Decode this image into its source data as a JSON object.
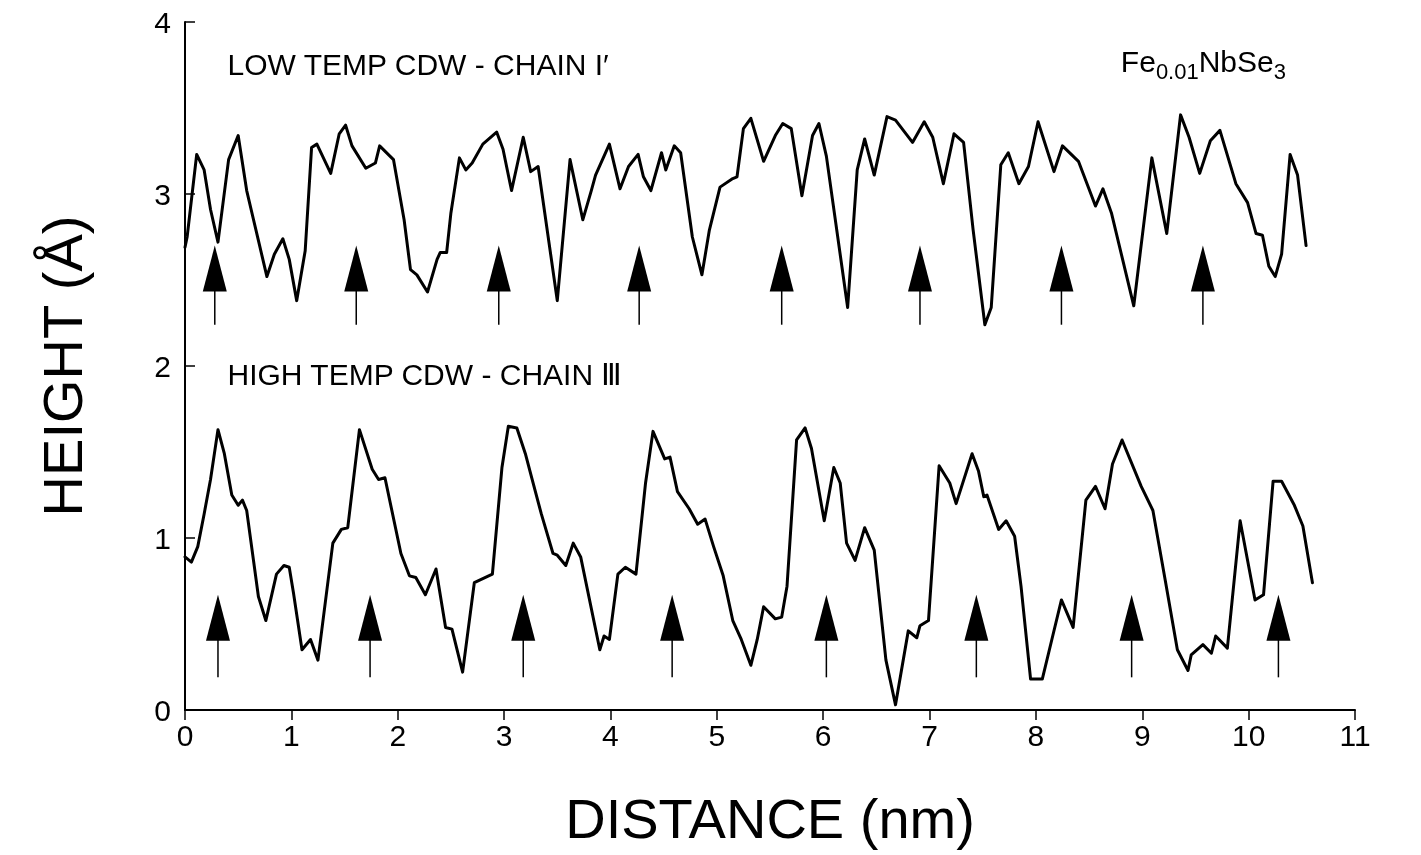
{
  "chart_data": {
    "type": "line",
    "xlabel": "DISTANCE (nm)",
    "ylabel": "HEIGHT (Å)",
    "annotations": [
      "LOW TEMP CDW - CHAIN I′",
      "HIGH TEMP CDW - CHAIN Ⅲ",
      "Fe$_{0.01}$NbSe$_{3}$"
    ],
    "xlim": [
      0,
      11
    ],
    "xticks": [
      0,
      1,
      2,
      3,
      4,
      5,
      6,
      7,
      8,
      9,
      10,
      11
    ],
    "ylim": [
      0,
      4
    ],
    "yticks": [
      0,
      1,
      2,
      3,
      4
    ],
    "grid": false,
    "marker": "none",
    "line_style": "solid",
    "series": [
      {
        "color": "#000000",
        "x": [
          0,
          0.02,
          0.11,
          0.18,
          0.24,
          0.31,
          0.41,
          0.5,
          0.58,
          0.69,
          0.77,
          0.84,
          0.92,
          0.98,
          1.05,
          1.13,
          1.19,
          1.24,
          1.37,
          1.45,
          1.51,
          1.57,
          1.7,
          1.79,
          1.83,
          1.96,
          2.06,
          2.12,
          2.18,
          2.28,
          2.37,
          2.4,
          2.46,
          2.5,
          2.58,
          2.64,
          2.7,
          2.8,
          2.93,
          2.99,
          3.07,
          3.18,
          3.25,
          3.32,
          3.5,
          3.62,
          3.74,
          3.82,
          3.86,
          3.99,
          4.09,
          4.17,
          4.26,
          4.31,
          4.38,
          4.48,
          4.52,
          4.6,
          4.66,
          4.77,
          4.86,
          4.93,
          5.03,
          5.15,
          5.19,
          5.25,
          5.32,
          5.44,
          5.55,
          5.62,
          5.7,
          5.8,
          5.9,
          5.96,
          6.03,
          6.23,
          6.32,
          6.39,
          6.48,
          6.6,
          6.68,
          6.84,
          6.95,
          7.03,
          7.13,
          7.23,
          7.32,
          7.41,
          7.52,
          7.58,
          7.67,
          7.74,
          7.84,
          7.93,
          8.02,
          8.17,
          8.25,
          8.4,
          8.56,
          8.63,
          8.71,
          8.92,
          9.09,
          9.23,
          9.36,
          9.44,
          9.54,
          9.64,
          9.73,
          9.88,
          9.99,
          10.07,
          10.13,
          10.19,
          10.25,
          10.31,
          10.39,
          10.46,
          10.54
        ],
        "values": [
          2.69,
          2.75,
          3.23,
          3.14,
          2.91,
          2.72,
          3.2,
          3.34,
          3.02,
          2.73,
          2.52,
          2.65,
          2.74,
          2.62,
          2.38,
          2.67,
          3.27,
          3.29,
          3.12,
          3.35,
          3.4,
          3.28,
          3.15,
          3.18,
          3.28,
          3.2,
          2.85,
          2.56,
          2.53,
          2.43,
          2.62,
          2.66,
          2.66,
          2.89,
          3.21,
          3.14,
          3.18,
          3.29,
          3.36,
          3.26,
          3.02,
          3.33,
          3.13,
          3.16,
          2.38,
          3.2,
          2.85,
          3.02,
          3.11,
          3.29,
          3.03,
          3.16,
          3.23,
          3.1,
          3.02,
          3.24,
          3.14,
          3.28,
          3.24,
          2.75,
          2.53,
          2.79,
          3.04,
          3.09,
          3.1,
          3.38,
          3.44,
          3.19,
          3.34,
          3.41,
          3.38,
          2.99,
          3.34,
          3.41,
          3.22,
          2.34,
          3.14,
          3.32,
          3.11,
          3.45,
          3.43,
          3.3,
          3.42,
          3.33,
          3.06,
          3.35,
          3.3,
          2.79,
          2.24,
          2.34,
          3.17,
          3.24,
          3.06,
          3.16,
          3.42,
          3.13,
          3.28,
          3.19,
          2.93,
          3.03,
          2.89,
          2.35,
          3.21,
          2.77,
          3.46,
          3.33,
          3.12,
          3.31,
          3.37,
          3.06,
          2.95,
          2.77,
          2.76,
          2.58,
          2.52,
          2.65,
          3.23,
          3.11,
          2.7
        ]
      },
      {
        "color": "#000000",
        "x": [
          0,
          0.06,
          0.12,
          0.18,
          0.24,
          0.31,
          0.37,
          0.44,
          0.5,
          0.54,
          0.58,
          0.69,
          0.76,
          0.86,
          0.93,
          0.98,
          1.02,
          1.1,
          1.18,
          1.25,
          1.39,
          1.47,
          1.53,
          1.64,
          1.76,
          1.82,
          1.88,
          2.03,
          2.11,
          2.17,
          2.26,
          2.36,
          2.45,
          2.51,
          2.61,
          2.72,
          2.89,
          2.98,
          3.04,
          3.12,
          3.2,
          3.26,
          3.35,
          3.46,
          3.5,
          3.58,
          3.65,
          3.72,
          3.9,
          3.94,
          3.99,
          4.07,
          4.14,
          4.24,
          4.33,
          4.4,
          4.51,
          4.56,
          4.63,
          4.74,
          4.82,
          4.89,
          4.97,
          5.06,
          5.15,
          5.23,
          5.32,
          5.38,
          5.44,
          5.55,
          5.61,
          5.66,
          5.75,
          5.83,
          5.89,
          6.01,
          6.1,
          6.16,
          6.22,
          6.3,
          6.39,
          6.48,
          6.59,
          6.68,
          6.8,
          6.88,
          6.91,
          6.99,
          7.09,
          7.19,
          7.25,
          7.4,
          7.46,
          7.51,
          7.54,
          7.65,
          7.72,
          7.8,
          7.86,
          7.95,
          8.06,
          8.15,
          8.24,
          8.35,
          8.47,
          8.56,
          8.65,
          8.72,
          8.81,
          8.99,
          9.1,
          9.22,
          9.33,
          9.43,
          9.46,
          9.57,
          9.65,
          9.69,
          9.8,
          9.92,
          10.06,
          10.14,
          10.23,
          10.31,
          10.43,
          10.51,
          10.6
        ],
        "values": [
          0.89,
          0.86,
          0.95,
          1.14,
          1.34,
          1.63,
          1.49,
          1.25,
          1.19,
          1.22,
          1.16,
          0.66,
          0.52,
          0.79,
          0.84,
          0.83,
          0.68,
          0.35,
          0.41,
          0.29,
          0.97,
          1.05,
          1.06,
          1.63,
          1.4,
          1.34,
          1.35,
          0.91,
          0.78,
          0.77,
          0.67,
          0.82,
          0.48,
          0.47,
          0.22,
          0.74,
          0.79,
          1.41,
          1.65,
          1.64,
          1.49,
          1.35,
          1.14,
          0.91,
          0.9,
          0.84,
          0.97,
          0.89,
          0.35,
          0.43,
          0.41,
          0.79,
          0.83,
          0.79,
          1.32,
          1.62,
          1.46,
          1.47,
          1.27,
          1.17,
          1.08,
          1.11,
          0.95,
          0.78,
          0.52,
          0.41,
          0.26,
          0.41,
          0.6,
          0.53,
          0.54,
          0.72,
          1.57,
          1.64,
          1.52,
          1.1,
          1.41,
          1.32,
          0.97,
          0.87,
          1.06,
          0.93,
          0.29,
          0.03,
          0.46,
          0.42,
          0.49,
          0.52,
          1.42,
          1.32,
          1.2,
          1.49,
          1.39,
          1.24,
          1.25,
          1.05,
          1.1,
          1.01,
          0.72,
          0.18,
          0.18,
          0.41,
          0.64,
          0.48,
          1.22,
          1.3,
          1.17,
          1.43,
          1.57,
          1.3,
          1.16,
          0.74,
          0.35,
          0.23,
          0.32,
          0.38,
          0.33,
          0.43,
          0.36,
          1.1,
          0.64,
          0.67,
          1.33,
          1.33,
          1.19,
          1.07,
          0.74
        ]
      }
    ]
  }
}
